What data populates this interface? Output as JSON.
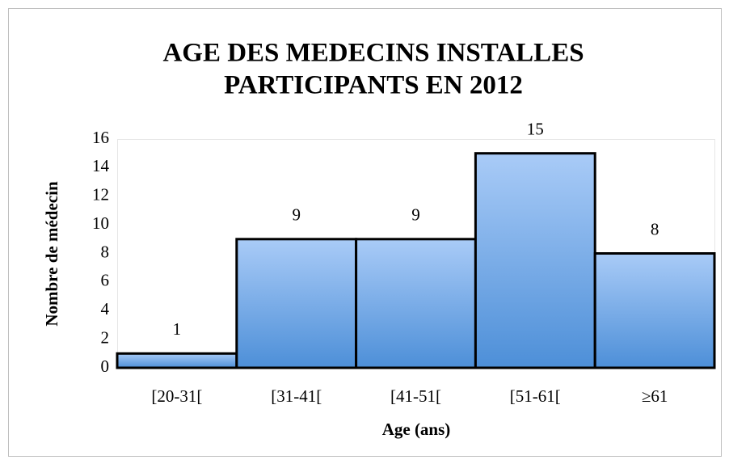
{
  "chart_data": {
    "type": "bar",
    "title": [
      "AGE DES MEDECINS INSTALLES",
      "PARTICIPANTS EN 2012"
    ],
    "x_label": "Age (ans)",
    "y_label": "Nombre de médecin",
    "categories": [
      "[20-31[",
      "[31-41[",
      "[41-51[",
      "[51-61[",
      "≥61"
    ],
    "values": [
      1,
      9,
      9,
      15,
      8
    ],
    "color": "#6aa3e6",
    "ylim": [
      0,
      16
    ],
    "yticks": [
      0,
      2,
      4,
      6,
      8,
      10,
      12,
      14,
      16
    ],
    "grid": false
  }
}
